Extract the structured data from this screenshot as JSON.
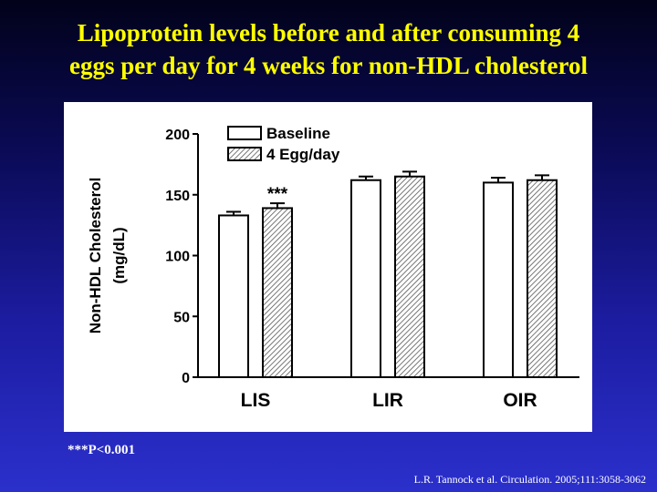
{
  "slide": {
    "title_line1": "Lipoprotein levels before and after consuming 4",
    "title_line2": "eggs per day for 4 weeks for non-HDL cholesterol",
    "footnote": "***P<0.001",
    "citation": "L.R.  Tannock et al. Circulation.  2005;111:3058-3062"
  },
  "colors": {
    "title": "#ffff00",
    "background_top": "#02021a",
    "background_bottom": "#2b30cc",
    "panel": "#ffffff",
    "ink": "#000000"
  },
  "chart_data": {
    "type": "bar",
    "title": "",
    "xlabel": "",
    "ylabel": "Non-HDL Cholesterol (mg/dL)",
    "ylabel_lines": [
      "Non-HDL Cholesterol",
      "(mg/dL)"
    ],
    "ylim": [
      0,
      200
    ],
    "yticks": [
      0,
      50,
      100,
      150,
      200
    ],
    "categories": [
      "LIS",
      "LIR",
      "OIR"
    ],
    "series": [
      {
        "name": "Baseline",
        "pattern": "white",
        "values": [
          133,
          162,
          160
        ],
        "errors": [
          3,
          3,
          4
        ]
      },
      {
        "name": "4 Egg/day",
        "pattern": "hatched",
        "values": [
          139,
          165,
          162
        ],
        "errors": [
          4,
          4,
          4
        ]
      }
    ],
    "annotations": [
      {
        "text": "***",
        "category": "LIS",
        "series": "4 Egg/day"
      }
    ],
    "legend": "top-left",
    "grid": false
  }
}
